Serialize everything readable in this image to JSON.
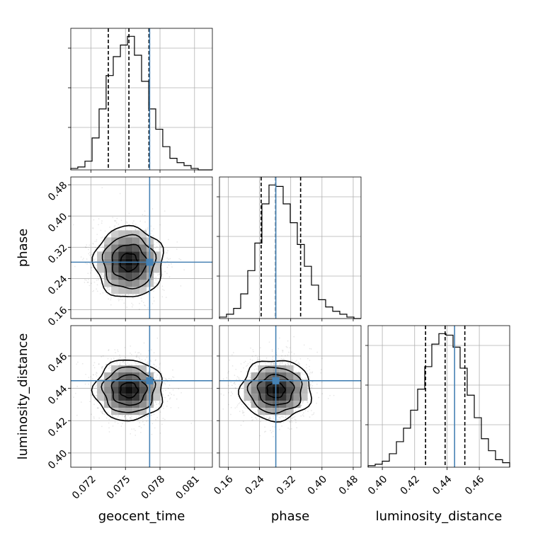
{
  "chart_data": {
    "type": "corner",
    "parameters": [
      "geocent_time",
      "phase",
      "luminosity_distance"
    ],
    "truth": {
      "geocent_time": 0.0771,
      "phase": 0.2818,
      "luminosity_distance": 0.4447
    },
    "truth_color": "#4682b4",
    "grid": true,
    "marginals": [
      {
        "parameter": "geocent_time",
        "xlim": [
          0.07025,
          0.08255
        ],
        "quantile_lines": [
          0.07351,
          0.0753,
          0.07704
        ],
        "bin_edges": [
          0.07025,
          0.07086,
          0.07148,
          0.0721,
          0.07271,
          0.07332,
          0.07394,
          0.07456,
          0.07517,
          0.07578,
          0.0764,
          0.07702,
          0.07763,
          0.07824,
          0.07886,
          0.07948,
          0.08009,
          0.0807,
          0.08132,
          0.08194,
          0.08255
        ],
        "counts": [
          1,
          2,
          6,
          22,
          42,
          65,
          78,
          86,
          92,
          79,
          61,
          42,
          28,
          16,
          8,
          5,
          3,
          1,
          0,
          0
        ],
        "xticks": [
          "0.072",
          "0.075",
          "0.078",
          "0.081"
        ],
        "xlabel": "geocent_time"
      },
      {
        "parameter": "phase",
        "xlim": [
          0.1375,
          0.5
        ],
        "quantile_lines": [
          0.2443,
          0.2814,
          0.3453
        ],
        "bin_edges": [
          0.1375,
          0.15563,
          0.17375,
          0.19188,
          0.21,
          0.22813,
          0.24625,
          0.26438,
          0.2825,
          0.30063,
          0.31875,
          0.33688,
          0.355,
          0.37313,
          0.39125,
          0.40938,
          0.4275,
          0.44563,
          0.46375,
          0.48188,
          0.5
        ],
        "counts": [
          1,
          3,
          7,
          17,
          33,
          52,
          79,
          92,
          91,
          79,
          66,
          51,
          36,
          23,
          13,
          8,
          5,
          3,
          1,
          0
        ],
        "xticks": [
          "0.16",
          "0.24",
          "0.32",
          "0.40",
          "0.48"
        ],
        "xlabel": "phase"
      },
      {
        "parameter": "luminosity_distance",
        "xlim": [
          0.3912,
          0.4788
        ],
        "quantile_lines": [
          0.42675,
          0.43885,
          0.45105
        ],
        "bin_edges": [
          0.3912,
          0.39558,
          0.39996,
          0.40434,
          0.40872,
          0.4131,
          0.41748,
          0.42186,
          0.42624,
          0.43062,
          0.435,
          0.43938,
          0.44376,
          0.44814,
          0.45252,
          0.4569,
          0.46128,
          0.46566,
          0.47004,
          0.47442,
          0.4788
        ],
        "counts": [
          1,
          2,
          4,
          9,
          17,
          26,
          38,
          52,
          67,
          82,
          89,
          88,
          80,
          66,
          48,
          33,
          19,
          11,
          5,
          3
        ],
        "xticks": [
          "0.40",
          "0.42",
          "0.44",
          "0.46"
        ],
        "xlabel": "luminosity_distance"
      }
    ],
    "joint": [
      {
        "x": "geocent_time",
        "y": "phase",
        "ylim": [
          0.1375,
          0.5
        ],
        "yticks": [
          "0.16",
          "0.24",
          "0.32",
          "0.40",
          "0.48"
        ],
        "ylabel": "phase",
        "center": [
          0.0753,
          0.2818
        ],
        "spread": [
          0.0015,
          0.0455
        ]
      },
      {
        "x": "geocent_time",
        "y": "luminosity_distance",
        "ylim": [
          0.3912,
          0.4788
        ],
        "yticks": [
          "0.40",
          "0.42",
          "0.44",
          "0.46"
        ],
        "ylabel": "luminosity_distance",
        "center": [
          0.0753,
          0.4389
        ],
        "spread": [
          0.0015,
          0.0094
        ]
      },
      {
        "x": "phase",
        "y": "luminosity_distance",
        "center": [
          0.2818,
          0.4389
        ],
        "spread": [
          0.0455,
          0.0094
        ]
      }
    ]
  }
}
